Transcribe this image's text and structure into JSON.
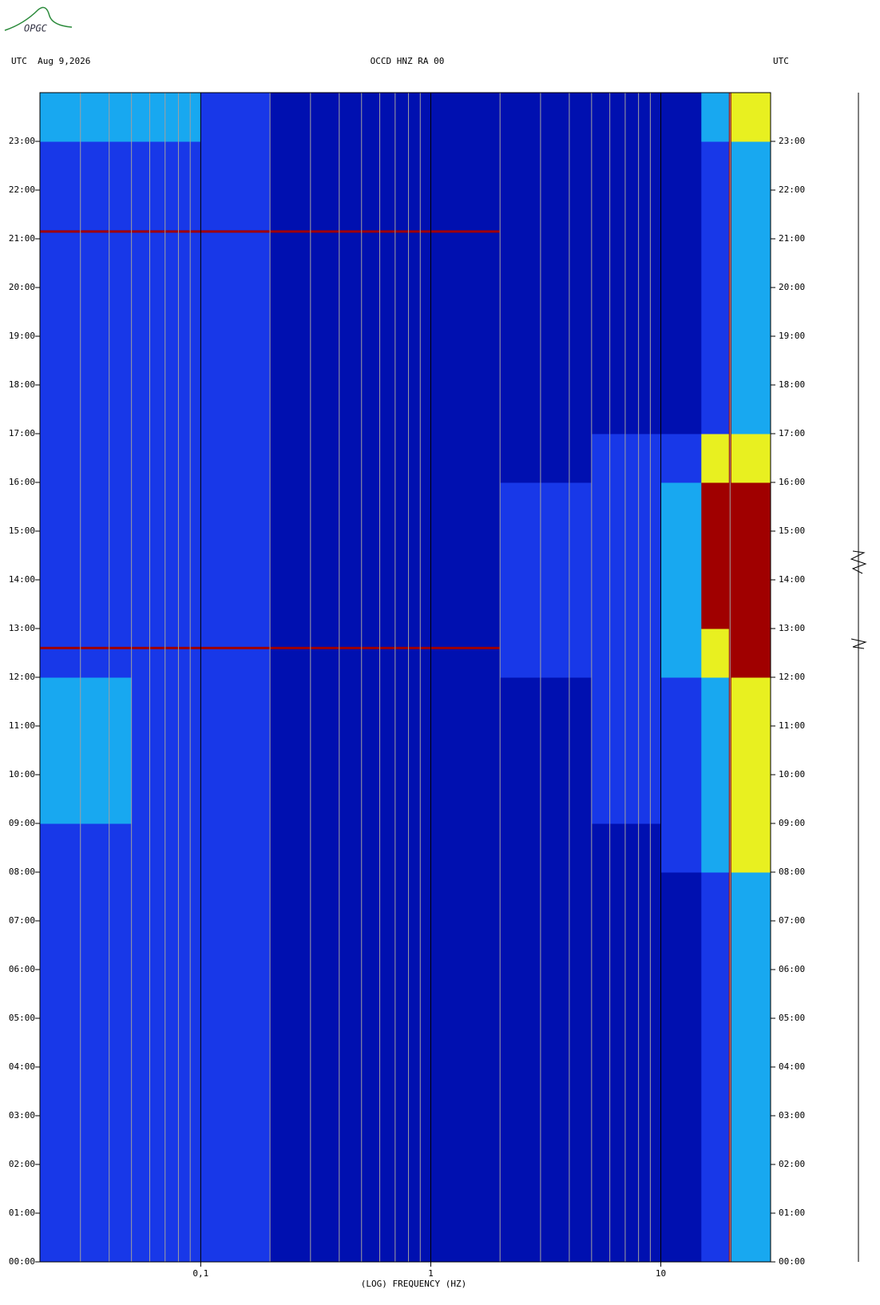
{
  "logo": "OPGC",
  "chart_data": {
    "type": "spectrogram",
    "title": "OCCD HNZ RA 00",
    "left_header": "UTC  Aug 9,2026",
    "right_header": "UTC",
    "x_label": "(LOG) FREQUENCY (HZ)",
    "log_x": true,
    "xlim": [
      0.02,
      30
    ],
    "xticks": [
      {
        "value": 0.1,
        "label": "0,1"
      },
      1,
      10
    ],
    "xminor": [
      0.03,
      0.04,
      0.05,
      0.06,
      0.07,
      0.08,
      0.09,
      0.2,
      0.3,
      0.4,
      0.5,
      0.6,
      0.7,
      0.8,
      0.9,
      2,
      3,
      4,
      5,
      6,
      7,
      8,
      9,
      20
    ],
    "ylim": [
      0,
      24
    ],
    "yticks": [
      {
        "value": 0,
        "label": "00:00"
      },
      {
        "value": 1,
        "label": "01:00"
      },
      {
        "value": 2,
        "label": "02:00"
      },
      {
        "value": 3,
        "label": "03:00"
      },
      {
        "value": 4,
        "label": "04:00"
      },
      {
        "value": 5,
        "label": "05:00"
      },
      {
        "value": 6,
        "label": "06:00"
      },
      {
        "value": 7,
        "label": "07:00"
      },
      {
        "value": 8,
        "label": "08:00"
      },
      {
        "value": 9,
        "label": "09:00"
      },
      {
        "value": 10,
        "label": "10:00"
      },
      {
        "value": 11,
        "label": "11:00"
      },
      {
        "value": 12,
        "label": "12:00"
      },
      {
        "value": 13,
        "label": "13:00"
      },
      {
        "value": 14,
        "label": "14:00"
      },
      {
        "value": 15,
        "label": "15:00"
      },
      {
        "value": 16,
        "label": "16:00"
      },
      {
        "value": 17,
        "label": "17:00"
      },
      {
        "value": 18,
        "label": "18:00"
      },
      {
        "value": 19,
        "label": "19:00"
      },
      {
        "value": 20,
        "label": "20:00"
      },
      {
        "value": 21,
        "label": "21:00"
      },
      {
        "value": 22,
        "label": "22:00"
      },
      {
        "value": 23,
        "label": "23:00"
      }
    ],
    "xbins": [
      0.02,
      0.05,
      0.1,
      0.2,
      0.5,
      1,
      2,
      5,
      10,
      15,
      20,
      30
    ],
    "ybins": [
      0,
      1,
      2,
      3,
      4,
      5,
      6,
      7,
      8,
      9,
      10,
      11,
      12,
      13,
      14,
      15,
      16,
      17,
      18,
      19,
      20,
      21,
      22,
      23,
      24
    ],
    "colors": [
      "#0010b0",
      "#1838e8",
      "#18a8f0",
      "#e8f020",
      "#a00000"
    ],
    "z": [
      [
        1,
        1,
        1,
        0,
        0,
        0,
        0,
        0,
        0,
        1,
        2
      ],
      [
        1,
        1,
        1,
        0,
        0,
        0,
        0,
        0,
        0,
        1,
        2
      ],
      [
        1,
        1,
        1,
        0,
        0,
        0,
        0,
        0,
        0,
        1,
        2
      ],
      [
        1,
        1,
        1,
        0,
        0,
        0,
        0,
        0,
        0,
        1,
        2
      ],
      [
        1,
        1,
        1,
        0,
        0,
        0,
        0,
        0,
        0,
        1,
        2
      ],
      [
        1,
        1,
        1,
        0,
        0,
        0,
        0,
        0,
        0,
        1,
        2
      ],
      [
        1,
        1,
        1,
        0,
        0,
        0,
        0,
        0,
        0,
        1,
        2
      ],
      [
        1,
        1,
        1,
        0,
        0,
        0,
        0,
        0,
        0,
        1,
        2
      ],
      [
        1,
        1,
        1,
        0,
        0,
        0,
        0,
        0,
        1,
        2,
        3
      ],
      [
        2,
        1,
        1,
        0,
        0,
        0,
        0,
        1,
        1,
        2,
        3
      ],
      [
        2,
        1,
        1,
        0,
        0,
        0,
        0,
        1,
        1,
        2,
        3
      ],
      [
        2,
        1,
        1,
        0,
        0,
        0,
        0,
        1,
        1,
        2,
        3
      ],
      [
        1,
        1,
        1,
        0,
        0,
        0,
        1,
        1,
        2,
        3,
        4
      ],
      [
        1,
        1,
        1,
        0,
        0,
        0,
        1,
        1,
        2,
        4,
        4
      ],
      [
        1,
        1,
        1,
        0,
        0,
        0,
        1,
        1,
        2,
        4,
        4
      ],
      [
        1,
        1,
        1,
        0,
        0,
        0,
        1,
        1,
        2,
        4,
        4
      ],
      [
        1,
        1,
        1,
        0,
        0,
        0,
        0,
        1,
        1,
        3,
        3
      ],
      [
        1,
        1,
        1,
        0,
        0,
        0,
        0,
        0,
        0,
        1,
        2
      ],
      [
        1,
        1,
        1,
        0,
        0,
        0,
        0,
        0,
        0,
        1,
        2
      ],
      [
        1,
        1,
        1,
        0,
        0,
        0,
        0,
        0,
        0,
        1,
        2
      ],
      [
        1,
        1,
        1,
        0,
        0,
        0,
        0,
        0,
        0,
        1,
        2
      ],
      [
        1,
        1,
        1,
        0,
        0,
        0,
        0,
        0,
        0,
        1,
        2
      ],
      [
        1,
        1,
        1,
        0,
        0,
        0,
        0,
        0,
        0,
        1,
        2
      ],
      [
        2,
        2,
        1,
        0,
        0,
        0,
        0,
        0,
        0,
        2,
        3
      ]
    ],
    "events": [
      {
        "time": 12.6,
        "fmax": 2
      },
      {
        "time": 21.15,
        "fmax": 2
      }
    ],
    "line_frequency": 20
  }
}
